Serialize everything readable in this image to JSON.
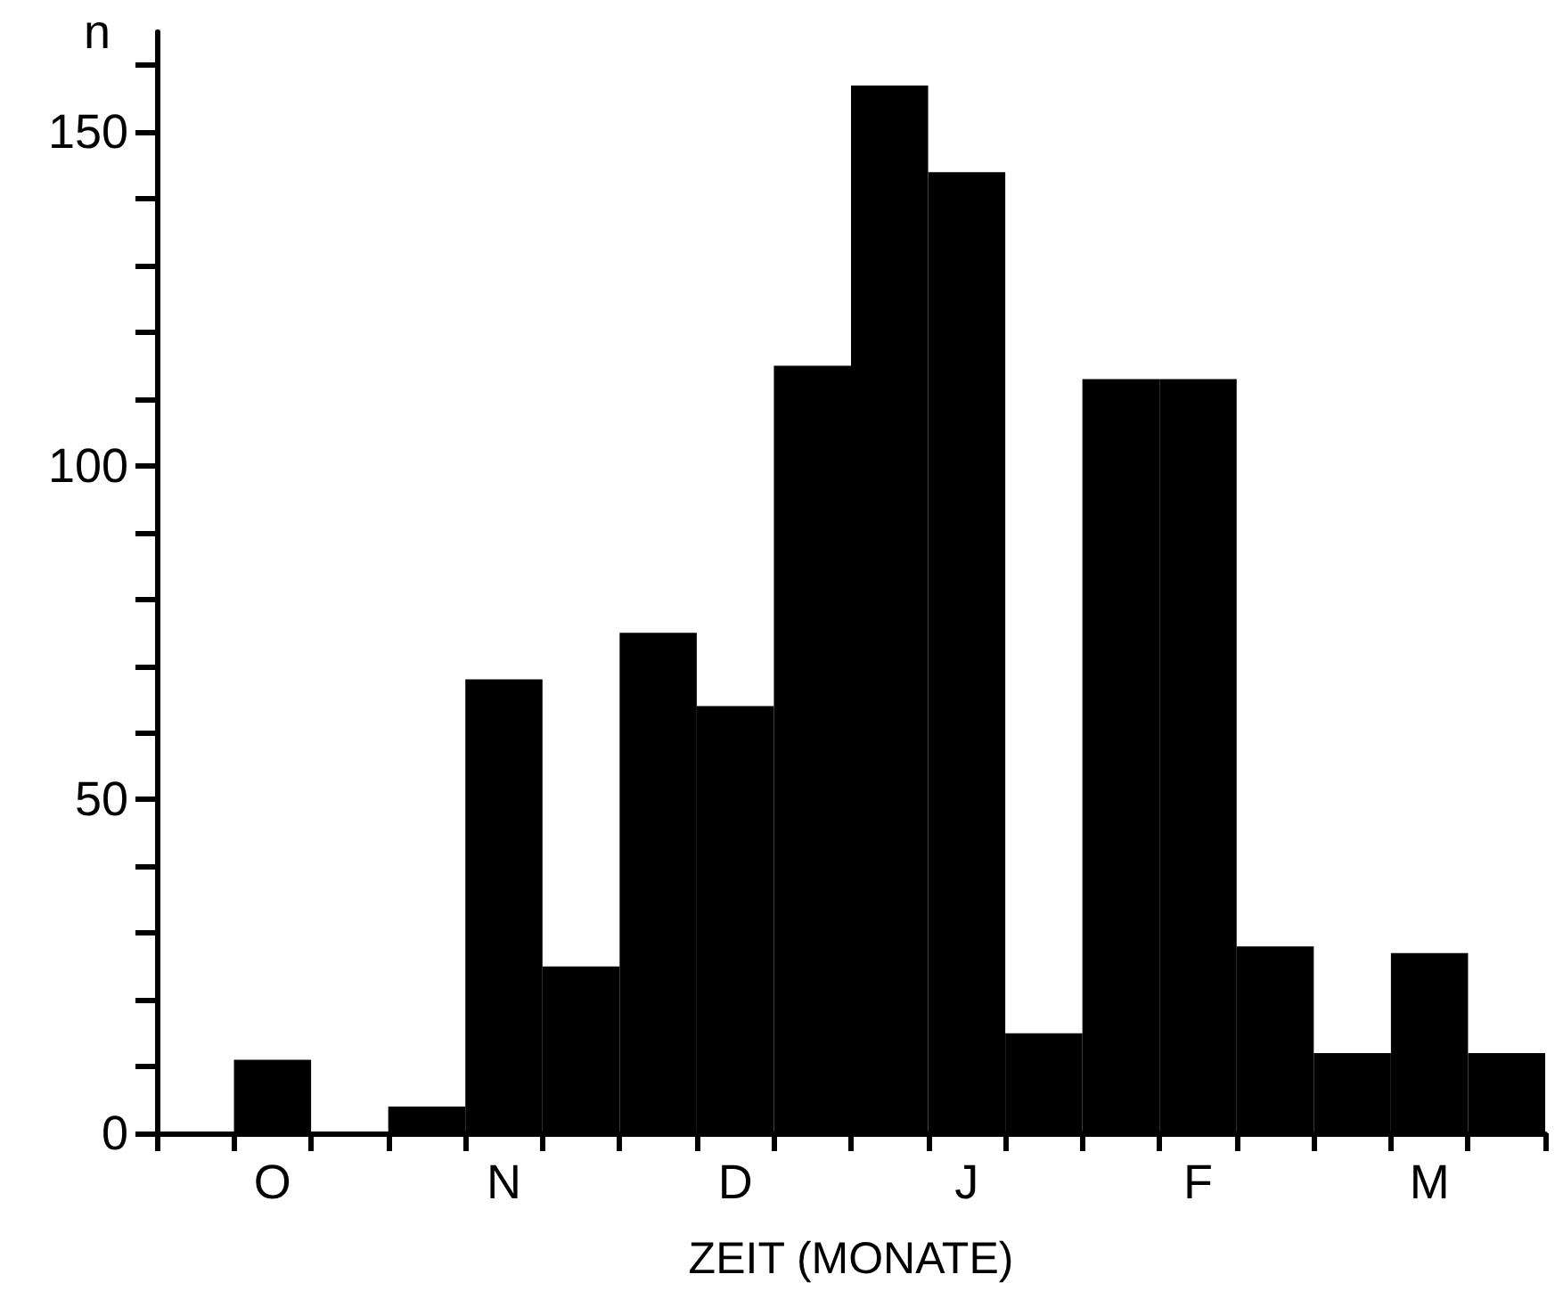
{
  "chart_data": {
    "type": "bar",
    "xlabel": "ZEIT (MONATE)",
    "ylabel": "n",
    "color": "#000000",
    "categories": [
      null,
      "O",
      null,
      null,
      "N",
      null,
      null,
      "D",
      null,
      null,
      "J",
      null,
      null,
      "F",
      null,
      null,
      "M",
      null
    ],
    "values": [
      0,
      11,
      0,
      4,
      68,
      25,
      75,
      64,
      115,
      157,
      144,
      15,
      113,
      113,
      28,
      12,
      27,
      12
    ],
    "ylim": [
      0,
      165
    ],
    "yticks": [
      0,
      {
        "value": 10,
        "label": null
      },
      {
        "value": 20,
        "label": null
      },
      {
        "value": 30,
        "label": null
      },
      {
        "value": 40,
        "label": null
      },
      50,
      {
        "value": 60,
        "label": null
      },
      {
        "value": 70,
        "label": null
      },
      {
        "value": 80,
        "label": null
      },
      {
        "value": 90,
        "label": null
      },
      100,
      {
        "value": 110,
        "label": null
      },
      {
        "value": 120,
        "label": null
      },
      {
        "value": 130,
        "label": null
      },
      {
        "value": 140,
        "label": null
      },
      150,
      {
        "value": 160,
        "label": null
      }
    ],
    "grid": false
  }
}
